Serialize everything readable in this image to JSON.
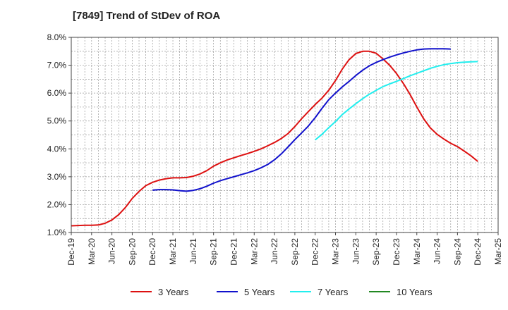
{
  "chart_data": {
    "type": "line",
    "title": "[7849]  Trend of StDev of ROA",
    "xlabel": "",
    "ylabel": "",
    "x_labels": [
      "Dec-19",
      "Mar-20",
      "Jun-20",
      "Sep-20",
      "Dec-20",
      "Mar-21",
      "Jun-21",
      "Sep-21",
      "Dec-21",
      "Mar-22",
      "Jun-22",
      "Sep-22",
      "Dec-22",
      "Mar-23",
      "Jun-23",
      "Sep-23",
      "Dec-23",
      "Mar-24",
      "Jun-24",
      "Sep-24",
      "Dec-24",
      "Mar-25"
    ],
    "y_tick_labels": [
      "1.0%",
      "2.0%",
      "3.0%",
      "4.0%",
      "5.0%",
      "6.0%",
      "7.0%",
      "8.0%"
    ],
    "ylim": [
      1.0,
      8.0
    ],
    "grid": true,
    "legend_position": "bottom",
    "series": [
      {
        "name": "3 Years",
        "color": "#dd1111",
        "start_index": 0,
        "values": [
          1.24,
          1.25,
          1.26,
          1.26,
          1.27,
          1.33,
          1.45,
          1.64,
          1.9,
          2.22,
          2.47,
          2.68,
          2.8,
          2.88,
          2.93,
          2.96,
          2.96,
          2.97,
          3.02,
          3.1,
          3.22,
          3.38,
          3.5,
          3.6,
          3.68,
          3.76,
          3.83,
          3.91,
          4.0,
          4.11,
          4.23,
          4.37,
          4.55,
          4.8,
          5.08,
          5.34,
          5.59,
          5.82,
          6.1,
          6.45,
          6.86,
          7.2,
          7.42,
          7.5,
          7.5,
          7.43,
          7.23,
          7.0,
          6.7,
          6.35,
          5.95,
          5.5,
          5.08,
          4.75,
          4.52,
          4.35,
          4.2,
          4.08,
          3.92,
          3.75,
          3.55
        ]
      },
      {
        "name": "5 Years",
        "color": "#1111cc",
        "start_index": 12,
        "values": [
          2.52,
          2.54,
          2.54,
          2.53,
          2.5,
          2.48,
          2.51,
          2.57,
          2.66,
          2.77,
          2.86,
          2.93,
          3.0,
          3.07,
          3.14,
          3.22,
          3.32,
          3.44,
          3.61,
          3.82,
          4.07,
          4.33,
          4.57,
          4.82,
          5.12,
          5.45,
          5.76,
          6.0,
          6.22,
          6.42,
          6.63,
          6.82,
          6.98,
          7.1,
          7.2,
          7.29,
          7.37,
          7.44,
          7.5,
          7.55,
          7.58,
          7.59,
          7.59,
          7.59,
          7.58
        ]
      },
      {
        "name": "7 Years",
        "color": "#22eeee",
        "start_index": 36,
        "values": [
          4.32,
          4.52,
          4.76,
          4.98,
          5.23,
          5.43,
          5.62,
          5.8,
          5.96,
          6.1,
          6.23,
          6.33,
          6.42,
          6.52,
          6.62,
          6.71,
          6.8,
          6.89,
          6.96,
          7.02,
          7.06,
          7.09,
          7.11,
          7.12,
          7.13
        ]
      },
      {
        "name": "10 Years",
        "color": "#228822",
        "start_index": 0,
        "values": []
      }
    ]
  }
}
